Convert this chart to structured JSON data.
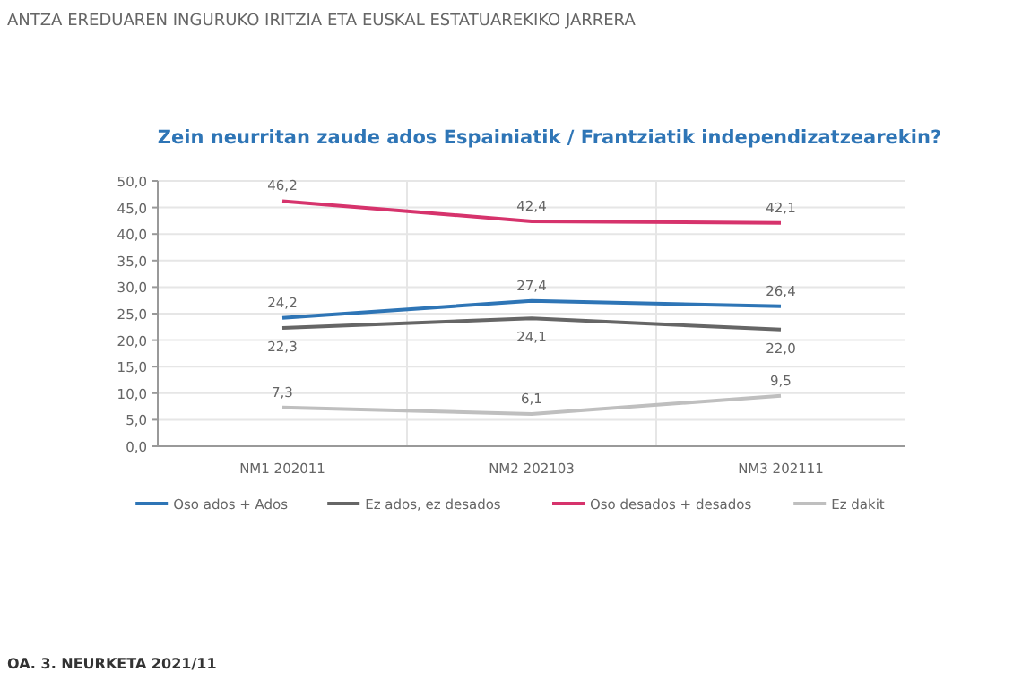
{
  "chart_data": {
    "type": "line",
    "title": "Zein neurritan zaude ados Espainiatik / Frantziatik independizatzearekin?",
    "subtitle": "ANTZA EREDUAREN INGURUKO IRITZIA ETA EUSKAL ESTATUAREKIKO JARRERA",
    "annotations": [
      "OA. 3. NEURKETA 2021/11"
    ],
    "categories": [
      "NM1 202011",
      "NM2 202103",
      "NM3 202111"
    ],
    "series": [
      {
        "name": "Oso ados + Ados",
        "color": "#2e75b6",
        "values": [
          24.2,
          27.4,
          26.4
        ],
        "value_labels": [
          "24,2",
          "27,4",
          "26,4"
        ]
      },
      {
        "name": "Ez ados, ez desados",
        "color": "#666666",
        "values": [
          22.3,
          24.1,
          22.0
        ],
        "value_labels": [
          "22,3",
          "24,1",
          "22,0"
        ]
      },
      {
        "name": "Oso desados + desados",
        "color": "#d6336c",
        "values": [
          46.2,
          42.4,
          42.1
        ],
        "value_labels": [
          "46,2",
          "42,4",
          "42,1"
        ]
      },
      {
        "name": "Ez dakit",
        "color": "#bfbfbf",
        "values": [
          7.3,
          6.1,
          9.5
        ],
        "value_labels": [
          "7,3",
          "6,1",
          "9,5"
        ]
      }
    ],
    "ylim": [
      0,
      50
    ],
    "yticks": [
      {
        "value": 0,
        "label": "0,0"
      },
      {
        "value": 5,
        "label": "5,0"
      },
      {
        "value": 10,
        "label": "10,0"
      },
      {
        "value": 15,
        "label": "15,0"
      },
      {
        "value": 20,
        "label": "20,0"
      },
      {
        "value": 25,
        "label": "25,0"
      },
      {
        "value": 30,
        "label": "30,0"
      },
      {
        "value": 35,
        "label": "35,0"
      },
      {
        "value": 40,
        "label": "40,0"
      },
      {
        "value": 45,
        "label": "45,0"
      },
      {
        "value": 50,
        "label": "50,0"
      }
    ],
    "grid": true,
    "legend": "bottom",
    "marker": "none",
    "line_style": "solid"
  }
}
